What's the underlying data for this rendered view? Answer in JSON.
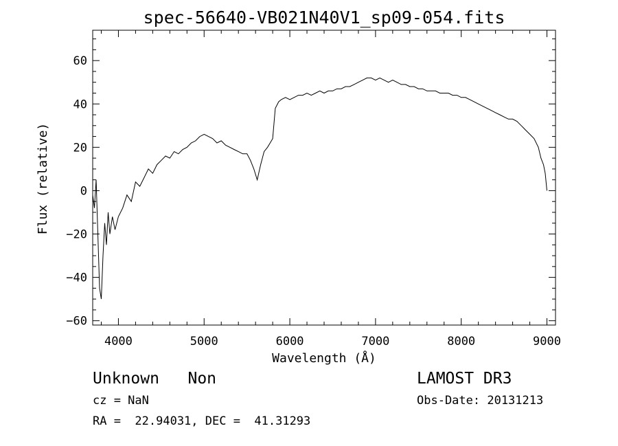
{
  "chart_data": {
    "type": "line",
    "title": "spec-56640-VB021N40V1_sp09-054.fits",
    "xlabel": "Wavelength (Å)",
    "ylabel": "Flux (relative)",
    "xlim": [
      3700,
      9100
    ],
    "ylim": [
      -62,
      74
    ],
    "xticks": [
      4000,
      5000,
      6000,
      7000,
      8000,
      9000
    ],
    "yticks": [
      -60,
      -40,
      -20,
      0,
      20,
      40,
      60
    ],
    "grid": false,
    "line_color": "#000000",
    "x": [
      3700,
      3720,
      3740,
      3760,
      3780,
      3800,
      3820,
      3840,
      3860,
      3880,
      3900,
      3930,
      3960,
      4000,
      4050,
      4100,
      4150,
      4200,
      4250,
      4300,
      4350,
      4400,
      4450,
      4500,
      4550,
      4600,
      4650,
      4700,
      4750,
      4800,
      4850,
      4900,
      4950,
      5000,
      5050,
      5100,
      5150,
      5200,
      5250,
      5300,
      5350,
      5400,
      5450,
      5500,
      5540,
      5580,
      5620,
      5660,
      5700,
      5740,
      5770,
      5800,
      5830,
      5870,
      5900,
      5950,
      6000,
      6050,
      6100,
      6150,
      6200,
      6250,
      6300,
      6350,
      6400,
      6450,
      6500,
      6550,
      6600,
      6650,
      6700,
      6750,
      6800,
      6850,
      6900,
      6950,
      7000,
      7050,
      7100,
      7150,
      7200,
      7250,
      7300,
      7350,
      7400,
      7450,
      7500,
      7550,
      7600,
      7650,
      7700,
      7750,
      7800,
      7850,
      7900,
      7950,
      8000,
      8050,
      8100,
      8150,
      8200,
      8250,
      8300,
      8350,
      8400,
      8450,
      8500,
      8550,
      8600,
      8650,
      8700,
      8750,
      8800,
      8850,
      8900,
      8930,
      8960,
      8980,
      9000
    ],
    "y": [
      -2,
      -8,
      5,
      -20,
      -45,
      -50,
      -30,
      -15,
      -25,
      -10,
      -20,
      -12,
      -18,
      -12,
      -8,
      -2,
      -5,
      4,
      2,
      6,
      10,
      8,
      12,
      14,
      16,
      15,
      18,
      17,
      19,
      20,
      22,
      23,
      25,
      26,
      25,
      24,
      22,
      23,
      21,
      20,
      19,
      18,
      17,
      17,
      14,
      10,
      5,
      12,
      18,
      20,
      22,
      24,
      38,
      41,
      42,
      43,
      42,
      43,
      44,
      44,
      45,
      44,
      45,
      46,
      45,
      46,
      46,
      47,
      47,
      48,
      48,
      49,
      50,
      51,
      52,
      52,
      51,
      52,
      51,
      50,
      51,
      50,
      49,
      49,
      48,
      48,
      47,
      47,
      46,
      46,
      46,
      45,
      45,
      45,
      44,
      44,
      43,
      43,
      42,
      41,
      40,
      39,
      38,
      37,
      36,
      35,
      34,
      33,
      33,
      32,
      30,
      28,
      26,
      24,
      20,
      15,
      12,
      8,
      0
    ],
    "annotations": [
      {
        "text": "Unknown   Non"
      },
      {
        "text": "cz = NaN"
      },
      {
        "text": "RA =  22.94031, DEC =  41.31293"
      },
      {
        "text": "LAMOST DR3"
      },
      {
        "text": "Obs-Date: 20131213"
      }
    ]
  }
}
